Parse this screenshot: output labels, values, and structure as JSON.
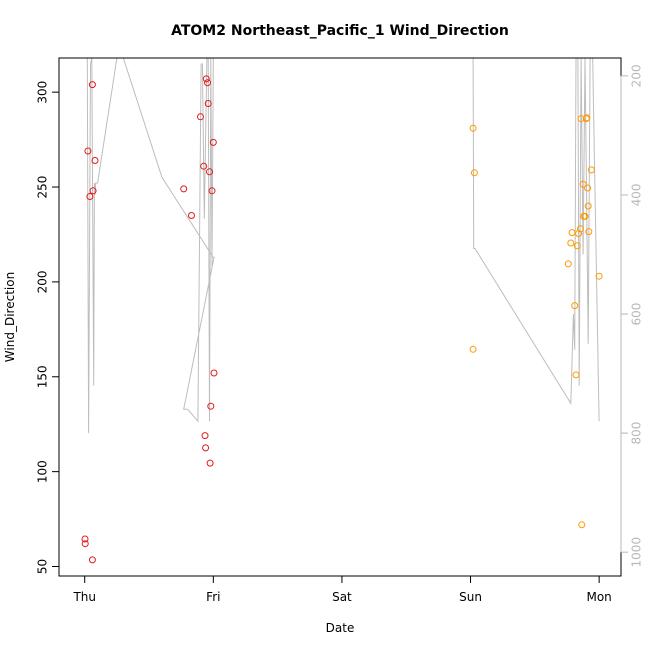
{
  "chart_data": {
    "type": "scatter",
    "title": "ATOM2 Northeast_Pacific_1 Wind_Direction",
    "xlabel": "Date",
    "ylabel": "Wind_Direction",
    "ylim": [
      45,
      318
    ],
    "xlim": [
      -0.2,
      4.17
    ],
    "y2lim": [
      1040,
      170
    ],
    "x_ticks": [
      {
        "value": 0,
        "label": "Thu"
      },
      {
        "value": 1,
        "label": "Fri"
      },
      {
        "value": 2,
        "label": "Sat"
      },
      {
        "value": 3,
        "label": "Sun"
      },
      {
        "value": 4,
        "label": "Mon"
      }
    ],
    "y_ticks": [
      50,
      100,
      150,
      200,
      250,
      300
    ],
    "y2_ticks": [
      200,
      400,
      600,
      800,
      1000
    ],
    "colors": {
      "red_series": "#e41a1c",
      "orange_series": "#ff9900",
      "track_line": "#bdbdbd",
      "right_axis": "#b8b8b8"
    },
    "series": [
      {
        "color": "red",
        "points": [
          [
            0.002,
            64.5
          ],
          [
            0.004,
            62
          ],
          [
            0.025,
            269
          ],
          [
            0.04,
            245
          ],
          [
            0.06,
            53.5
          ],
          [
            0.06,
            304
          ],
          [
            0.065,
            248
          ],
          [
            0.08,
            264
          ],
          [
            0.77,
            249
          ],
          [
            0.83,
            235
          ],
          [
            0.9,
            287
          ],
          [
            0.925,
            261
          ],
          [
            0.935,
            119
          ],
          [
            0.94,
            112.5
          ],
          [
            0.945,
            307
          ],
          [
            0.955,
            305
          ],
          [
            0.96,
            294
          ],
          [
            0.97,
            258
          ],
          [
            0.975,
            104.5
          ],
          [
            0.98,
            134.5
          ],
          [
            0.99,
            248
          ],
          [
            1.0,
            273.5
          ],
          [
            1.005,
            152
          ]
        ]
      },
      {
        "color": "orange",
        "points": [
          [
            3.02,
            281
          ],
          [
            3.03,
            257.5
          ],
          [
            3.02,
            164.5
          ],
          [
            3.76,
            209.5
          ],
          [
            3.78,
            220.5
          ],
          [
            3.79,
            226
          ],
          [
            3.81,
            187.5
          ],
          [
            3.82,
            151
          ],
          [
            3.83,
            219
          ],
          [
            3.84,
            225.5
          ],
          [
            3.855,
            228
          ],
          [
            3.86,
            286
          ],
          [
            3.865,
            72
          ],
          [
            3.875,
            251.5
          ],
          [
            3.88,
            234.5
          ],
          [
            3.89,
            234.5
          ],
          [
            3.9,
            286
          ],
          [
            3.905,
            286.5
          ],
          [
            3.91,
            249.5
          ],
          [
            3.915,
            240
          ],
          [
            3.92,
            226.5
          ],
          [
            3.94,
            259
          ],
          [
            4.0,
            203
          ]
        ]
      }
    ],
    "track_line": {
      "axis": "right",
      "points": [
        [
          0.0,
          170
        ],
        [
          0.02,
          170
        ],
        [
          0.03,
          800
        ],
        [
          0.045,
          180
        ],
        [
          0.055,
          170
        ],
        [
          0.07,
          720
        ],
        [
          0.075,
          380
        ],
        [
          0.08,
          400
        ],
        [
          0.085,
          380
        ],
        [
          0.1,
          380
        ],
        [
          0.25,
          170
        ],
        [
          0.3,
          170
        ],
        [
          0.6,
          370
        ],
        [
          1.0,
          505
        ],
        [
          1.005,
          505
        ],
        [
          0.77,
          760
        ],
        [
          0.8,
          760
        ],
        [
          0.88,
          780
        ],
        [
          0.905,
          180
        ],
        [
          0.915,
          180
        ],
        [
          0.93,
          440
        ],
        [
          0.95,
          170
        ],
        [
          0.96,
          170
        ],
        [
          0.97,
          780
        ],
        [
          0.98,
          170
        ],
        [
          0.99,
          520
        ],
        [
          1.0,
          170
        ],
        [
          3.02,
          170
        ],
        [
          3.025,
          490
        ],
        [
          3.035,
          490
        ],
        [
          3.78,
          750
        ],
        [
          3.8,
          600
        ],
        [
          3.81,
          660
        ],
        [
          3.82,
          170
        ],
        [
          3.835,
          170
        ],
        [
          3.845,
          720
        ],
        [
          3.86,
          170
        ],
        [
          3.875,
          500
        ],
        [
          3.89,
          170
        ],
        [
          3.9,
          360
        ],
        [
          3.915,
          650
        ],
        [
          3.93,
          170
        ],
        [
          3.95,
          170
        ],
        [
          3.96,
          300
        ],
        [
          4.0,
          780
        ]
      ]
    }
  }
}
